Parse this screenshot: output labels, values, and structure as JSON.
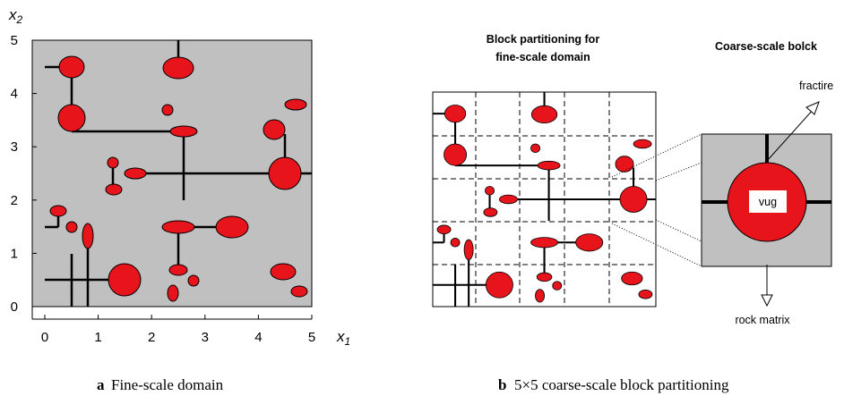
{
  "panel_a": {
    "x_label": {
      "base": "x",
      "sub": "1"
    },
    "y_label": {
      "base": "x",
      "sub": "2"
    },
    "x_ticks": [
      "0",
      "1",
      "2",
      "3",
      "4",
      "5"
    ],
    "y_ticks": [
      "0",
      "1",
      "2",
      "3",
      "4",
      "5"
    ],
    "caption": {
      "letter": "a",
      "text": "Fine-scale domain"
    }
  },
  "panel_b": {
    "title": [
      "Block partitioning for",
      "fine-scale domain"
    ],
    "block_title": "Coarse-scale bolck",
    "fracture_label": "fractire",
    "vug_label": "vug",
    "matrix_label": "rock matrix",
    "caption": {
      "letter": "b",
      "text": "5×5 coarse-scale block partitioning"
    }
  }
}
